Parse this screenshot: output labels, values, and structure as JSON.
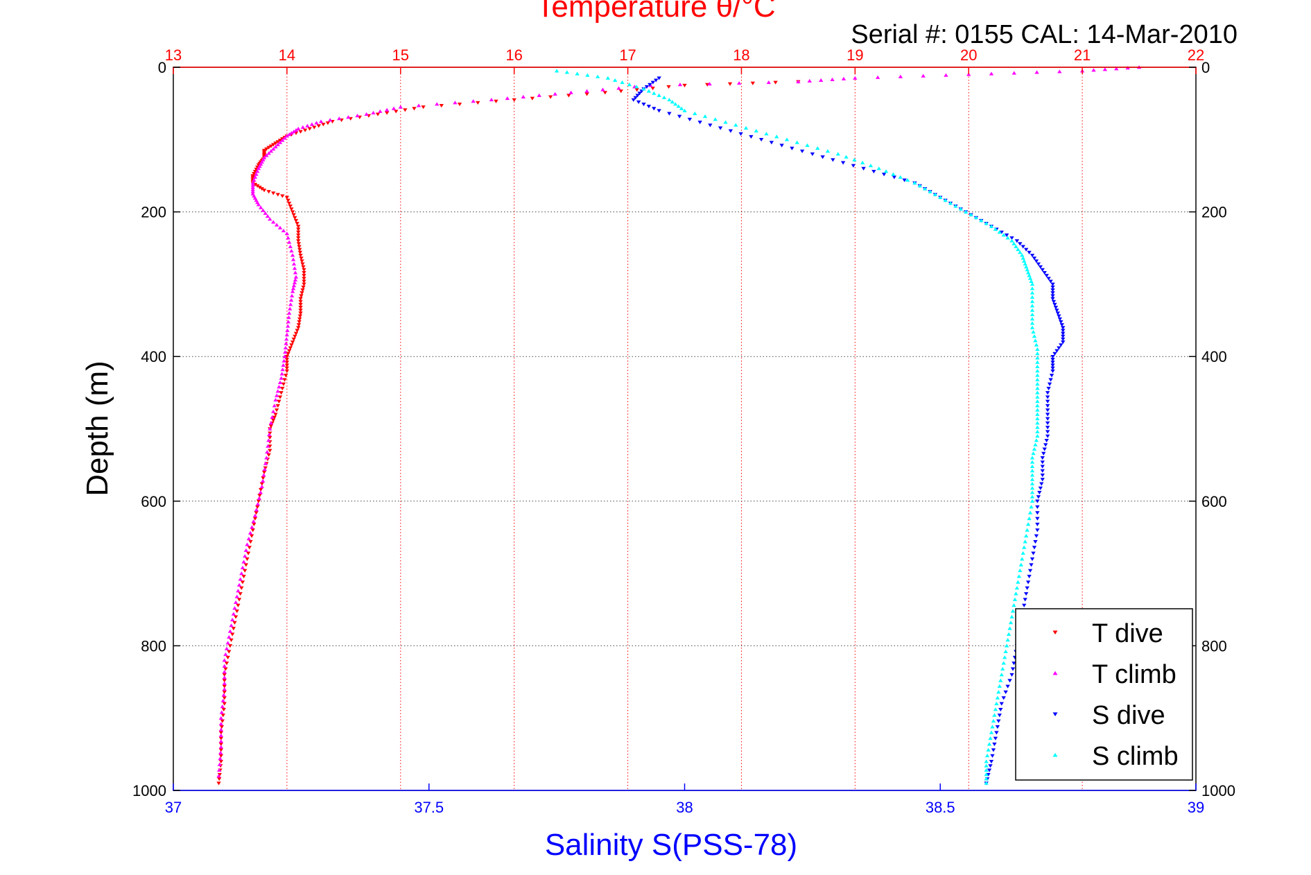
{
  "chart_data": {
    "type": "scatter",
    "title": "Temperature θ/°C",
    "subtitle": "Serial #: 0155  CAL: 14-Mar-2010",
    "ylabel": "Depth (m)",
    "xlabel": "Salinity S(PSS-78)",
    "top_axis": {
      "label": "Temperature θ/°C",
      "range": [
        13,
        22
      ],
      "ticks": [
        "13",
        "14",
        "15",
        "16",
        "17",
        "18",
        "19",
        "20",
        "21",
        "22"
      ],
      "color": "#ff0000"
    },
    "bottom_axis": {
      "label": "Salinity S(PSS-78)",
      "range": [
        37,
        39
      ],
      "ticks": [
        "37",
        "37.5",
        "38",
        "38.5",
        "39"
      ],
      "color": "#0000ff"
    },
    "y_axis": {
      "range": [
        0,
        1000
      ],
      "reversed": true,
      "ticks": [
        "0",
        "200",
        "400",
        "600",
        "800",
        "1000"
      ]
    },
    "grid": true,
    "legend_position": "bottom-right",
    "series": [
      {
        "name": "T dive",
        "axis": "temperature",
        "color": "#ff0000",
        "marker": "triangle-down",
        "points": [
          [
            18.5,
            20
          ],
          [
            17.5,
            25
          ],
          [
            16.8,
            35
          ],
          [
            16.0,
            45
          ],
          [
            15.2,
            55
          ],
          [
            14.8,
            65
          ],
          [
            14.4,
            75
          ],
          [
            14.2,
            85
          ],
          [
            14.0,
            95
          ],
          [
            13.9,
            105
          ],
          [
            13.8,
            115
          ],
          [
            13.8,
            125
          ],
          [
            13.75,
            135
          ],
          [
            13.7,
            150
          ],
          [
            13.7,
            160
          ],
          [
            13.8,
            170
          ],
          [
            14.0,
            180
          ],
          [
            14.05,
            200
          ],
          [
            14.1,
            220
          ],
          [
            14.1,
            240
          ],
          [
            14.12,
            260
          ],
          [
            14.15,
            280
          ],
          [
            14.15,
            300
          ],
          [
            14.12,
            320
          ],
          [
            14.12,
            340
          ],
          [
            14.1,
            360
          ],
          [
            14.05,
            380
          ],
          [
            14.0,
            400
          ],
          [
            14.0,
            420
          ],
          [
            13.95,
            450
          ],
          [
            13.9,
            480
          ],
          [
            13.85,
            500
          ],
          [
            13.85,
            530
          ],
          [
            13.8,
            560
          ],
          [
            13.75,
            600
          ],
          [
            13.7,
            640
          ],
          [
            13.65,
            680
          ],
          [
            13.6,
            720
          ],
          [
            13.55,
            760
          ],
          [
            13.5,
            800
          ],
          [
            13.45,
            840
          ],
          [
            13.45,
            880
          ],
          [
            13.42,
            920
          ],
          [
            13.42,
            960
          ],
          [
            13.4,
            990
          ]
        ]
      },
      {
        "name": "T climb",
        "axis": "temperature",
        "color": "#ff00ff",
        "marker": "triangle-up",
        "points": [
          [
            21.5,
            0
          ],
          [
            21.0,
            5
          ],
          [
            20.0,
            10
          ],
          [
            19.0,
            15
          ],
          [
            18.5,
            20
          ],
          [
            17.2,
            25
          ],
          [
            16.5,
            35
          ],
          [
            15.8,
            45
          ],
          [
            15.0,
            55
          ],
          [
            14.7,
            65
          ],
          [
            14.3,
            75
          ],
          [
            14.1,
            85
          ],
          [
            14.0,
            95
          ],
          [
            13.9,
            110
          ],
          [
            13.8,
            125
          ],
          [
            13.75,
            140
          ],
          [
            13.7,
            160
          ],
          [
            13.7,
            175
          ],
          [
            13.75,
            190
          ],
          [
            13.85,
            210
          ],
          [
            14.0,
            230
          ],
          [
            14.05,
            260
          ],
          [
            14.08,
            290
          ],
          [
            14.05,
            310
          ],
          [
            14.02,
            340
          ],
          [
            14.0,
            370
          ],
          [
            13.98,
            400
          ],
          [
            13.95,
            430
          ],
          [
            13.9,
            460
          ],
          [
            13.85,
            500
          ],
          [
            13.82,
            540
          ],
          [
            13.78,
            580
          ],
          [
            13.72,
            620
          ],
          [
            13.65,
            660
          ],
          [
            13.6,
            700
          ],
          [
            13.55,
            740
          ],
          [
            13.5,
            780
          ],
          [
            13.45,
            820
          ],
          [
            13.45,
            860
          ],
          [
            13.42,
            900
          ],
          [
            13.42,
            940
          ],
          [
            13.4,
            980
          ]
        ]
      },
      {
        "name": "S dive",
        "axis": "salinity",
        "color": "#0000ff",
        "marker": "triangle-down",
        "points": [
          [
            37.95,
            15
          ],
          [
            37.92,
            30
          ],
          [
            37.9,
            45
          ],
          [
            37.95,
            60
          ],
          [
            38.05,
            80
          ],
          [
            38.15,
            100
          ],
          [
            38.25,
            120
          ],
          [
            38.35,
            140
          ],
          [
            38.45,
            160
          ],
          [
            38.5,
            180
          ],
          [
            38.55,
            200
          ],
          [
            38.6,
            220
          ],
          [
            38.65,
            240
          ],
          [
            38.68,
            260
          ],
          [
            38.7,
            280
          ],
          [
            38.72,
            300
          ],
          [
            38.72,
            320
          ],
          [
            38.73,
            340
          ],
          [
            38.74,
            360
          ],
          [
            38.74,
            380
          ],
          [
            38.72,
            400
          ],
          [
            38.72,
            420
          ],
          [
            38.71,
            450
          ],
          [
            38.71,
            480
          ],
          [
            38.71,
            510
          ],
          [
            38.7,
            540
          ],
          [
            38.7,
            570
          ],
          [
            38.69,
            600
          ],
          [
            38.69,
            640
          ],
          [
            38.68,
            680
          ],
          [
            38.67,
            720
          ],
          [
            38.66,
            760
          ],
          [
            38.65,
            800
          ],
          [
            38.64,
            840
          ],
          [
            38.62,
            880
          ],
          [
            38.61,
            920
          ],
          [
            38.6,
            960
          ],
          [
            38.59,
            990
          ]
        ]
      },
      {
        "name": "S climb",
        "axis": "salinity",
        "color": "#00ffff",
        "marker": "triangle-up",
        "points": [
          [
            37.75,
            5
          ],
          [
            37.85,
            15
          ],
          [
            37.92,
            30
          ],
          [
            37.97,
            45
          ],
          [
            38.0,
            60
          ],
          [
            38.1,
            80
          ],
          [
            38.2,
            100
          ],
          [
            38.3,
            120
          ],
          [
            38.38,
            140
          ],
          [
            38.45,
            160
          ],
          [
            38.5,
            180
          ],
          [
            38.55,
            200
          ],
          [
            38.6,
            220
          ],
          [
            38.64,
            240
          ],
          [
            38.66,
            260
          ],
          [
            38.67,
            280
          ],
          [
            38.68,
            300
          ],
          [
            38.68,
            330
          ],
          [
            38.68,
            360
          ],
          [
            38.69,
            390
          ],
          [
            38.69,
            420
          ],
          [
            38.69,
            450
          ],
          [
            38.69,
            480
          ],
          [
            38.69,
            510
          ],
          [
            38.68,
            540
          ],
          [
            38.68,
            570
          ],
          [
            38.68,
            600
          ],
          [
            38.67,
            640
          ],
          [
            38.66,
            680
          ],
          [
            38.65,
            720
          ],
          [
            38.64,
            760
          ],
          [
            38.63,
            800
          ],
          [
            38.62,
            840
          ],
          [
            38.61,
            880
          ],
          [
            38.6,
            920
          ],
          [
            38.59,
            960
          ],
          [
            38.59,
            990
          ]
        ]
      }
    ]
  }
}
